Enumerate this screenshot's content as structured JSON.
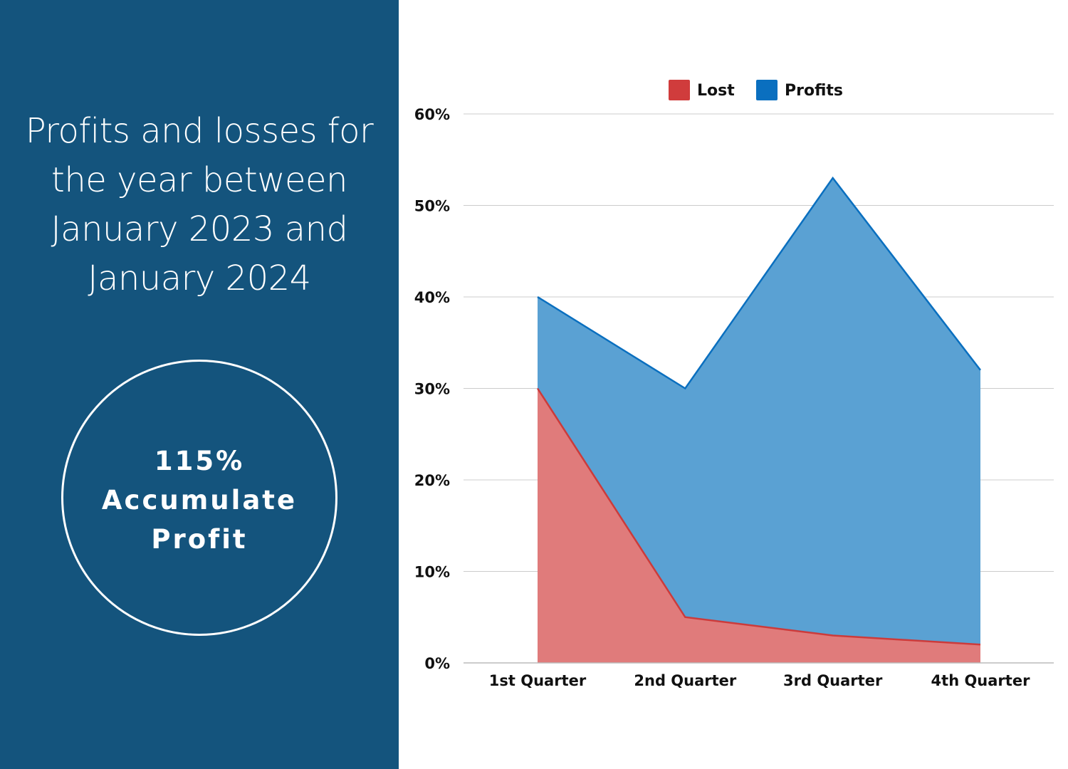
{
  "panel": {
    "title_lines": [
      "Profits and losses for",
      "the year between",
      "January 2023 and",
      "January 2024"
    ],
    "stat_lines": [
      "115%",
      "Accumulate",
      "Profit"
    ]
  },
  "colors": {
    "panel_bg": "#14547d",
    "lost_fill": "#e07b7b",
    "lost_line": "#cc3b3b",
    "lost_legend": "#d03c3c",
    "profits_fill": "#5aa1d3",
    "profits_line": "#0a6fbf",
    "profits_legend": "#0a6fbf",
    "grid": "#cccccc"
  },
  "chart_data": {
    "type": "area",
    "title": "",
    "categories": [
      "1st Quarter",
      "2nd Quarter",
      "3rd Quarter",
      "4th Quarter"
    ],
    "series": [
      {
        "name": "Lost",
        "values": [
          30,
          5,
          3,
          2
        ]
      },
      {
        "name": "Profits",
        "values": [
          40,
          30,
          53,
          32
        ]
      }
    ],
    "ylim": [
      0,
      60
    ],
    "yticks": [
      0,
      10,
      20,
      30,
      40,
      50,
      60
    ],
    "ytick_labels": [
      "0%",
      "10%",
      "20%",
      "30%",
      "40%",
      "50%",
      "60%"
    ],
    "grid": true,
    "legend": "top-center",
    "xlabel": "",
    "ylabel": ""
  }
}
